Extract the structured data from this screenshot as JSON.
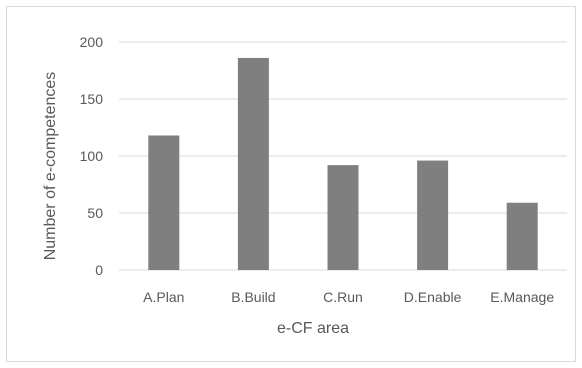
{
  "chart_data": {
    "type": "bar",
    "title": "",
    "xlabel": "e-CF area",
    "ylabel": "Number of e-competences",
    "categories": [
      "A.Plan",
      "B.Build",
      "C.Run",
      "D.Enable",
      "E.Manage"
    ],
    "values": [
      118,
      186,
      92,
      96,
      59
    ],
    "ylim": [
      0,
      200
    ],
    "yticks": [
      0,
      50,
      100,
      150,
      200
    ],
    "ytick_labels": [
      "0",
      "50",
      "100",
      "150",
      "200"
    ],
    "grid": true,
    "legend": "none",
    "bar_color": "#7f7f7f",
    "grid_color": "#d9d9d9"
  }
}
